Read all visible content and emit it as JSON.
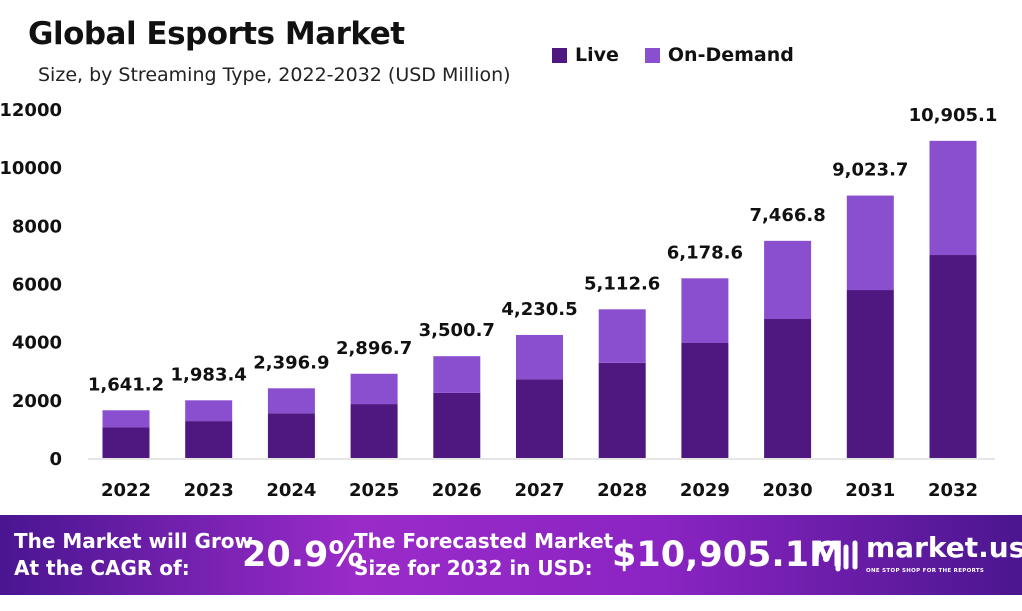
{
  "chart_data": {
    "type": "bar",
    "stacked": true,
    "title": "Global Esports Market",
    "subtitle": "Size, by Streaming Type, 2022-2032 (USD Million)",
    "categories": [
      "2022",
      "2023",
      "2024",
      "2025",
      "2026",
      "2027",
      "2028",
      "2029",
      "2030",
      "2031",
      "2032"
    ],
    "series": [
      {
        "name": "Live",
        "color": "#4f1780",
        "values": [
          1050,
          1269,
          1534,
          1854,
          2240,
          2708,
          3272,
          3954,
          4779,
          5775,
          6979
        ]
      },
      {
        "name": "On-Demand",
        "color": "#8a4fcf",
        "values": [
          591.2,
          714.4,
          862.9,
          1042.7,
          1260.7,
          1522.5,
          1840.6,
          2224.6,
          2687.8,
          3248.7,
          3926.1
        ]
      }
    ],
    "totals": [
      1641.2,
      1983.4,
      2396.9,
      2896.7,
      3500.7,
      4230.5,
      5112.6,
      6178.6,
      7466.8,
      9023.7,
      10905.1
    ],
    "total_labels": [
      "1,641.2",
      "1,983.4",
      "2,396.9",
      "2,896.7",
      "3,500.7",
      "4,230.5",
      "5,112.6",
      "6,178.6",
      "7,466.8",
      "9,023.7",
      "10,905.1"
    ],
    "ylim": [
      0,
      12000
    ],
    "yticks": [
      0,
      2000,
      4000,
      6000,
      8000,
      10000,
      12000
    ],
    "grid": false,
    "legend_position": "top"
  },
  "footer": {
    "cagr_label_1": "The Market will Grow",
    "cagr_label_2": "At the CAGR of:",
    "cagr_value": "20.9%",
    "forecast_label_1": "The Forecasted Market",
    "forecast_label_2": "Size for 2032 in USD:",
    "forecast_value": "$10,905.1M",
    "brand": "market.us",
    "tagline": "ONE STOP SHOP FOR THE REPORTS"
  }
}
